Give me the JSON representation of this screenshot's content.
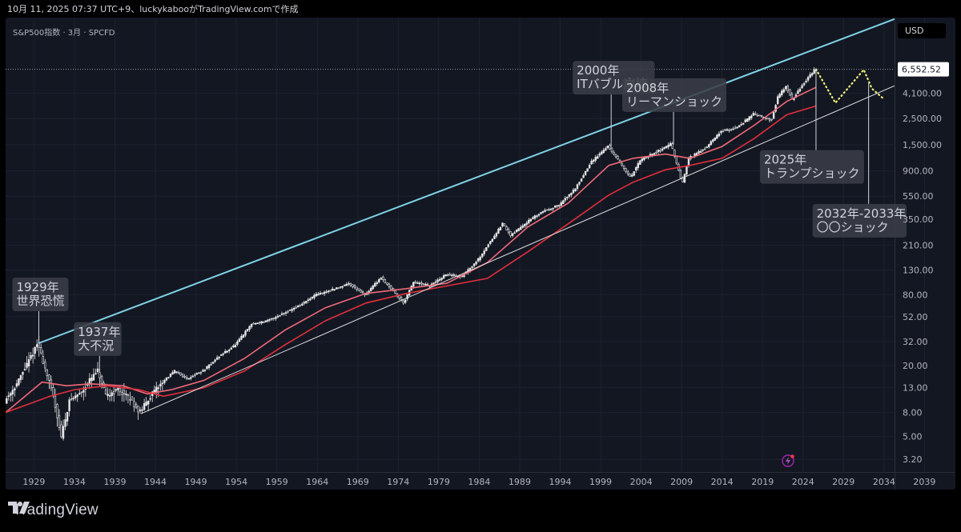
{
  "header": {
    "caption": "10月 11, 2025 07:37 UTC+9、luckykabooがTradingView.comで作成"
  },
  "chart_header": {
    "symbol": "S&P500指数 · 3月 · SPCFD",
    "currency": "USD"
  },
  "footer": {
    "logo_icon": "tradingview-logo-icon",
    "brand": "TradingView"
  },
  "colors": {
    "background": "#131722",
    "candles": "#e6e6e6",
    "upper_trendline": "#7fd3e6",
    "lower_trendline": "#e0e0e0",
    "ma_fast": "#f06a78",
    "ma_slow": "#e0303c",
    "projection": "#f2f27a"
  },
  "chart_data": {
    "type": "line",
    "title": "",
    "xlabel": "",
    "ylabel": "",
    "scale": "log",
    "xlim": [
      1925.5,
      2035.3
    ],
    "ylim": [
      2.5,
      18000
    ],
    "x_ticks": [
      "1929",
      "1934",
      "1939",
      "1944",
      "1949",
      "1954",
      "1959",
      "1964",
      "1969",
      "1974",
      "1979",
      "1984",
      "1989",
      "1994",
      "1999",
      "2004",
      "2009",
      "2014",
      "2019",
      "2024",
      "2029",
      "2034",
      "2039"
    ],
    "y_ticks": [
      "3.20",
      "5.00",
      "8.00",
      "13.00",
      "20.00",
      "32.00",
      "52.00",
      "80.00",
      "130.00",
      "210.00",
      "350.00",
      "550.00",
      "900.00",
      "1,500.00",
      "2,500.00",
      "4,100.00"
    ],
    "last_price": "6,552.52",
    "price_points": [
      [
        1925.5,
        10
      ],
      [
        1927,
        14
      ],
      [
        1928.5,
        22
      ],
      [
        1929.6,
        31
      ],
      [
        1930.5,
        19
      ],
      [
        1931.5,
        11
      ],
      [
        1932.5,
        5
      ],
      [
        1933.5,
        10
      ],
      [
        1935,
        12
      ],
      [
        1936,
        15
      ],
      [
        1937,
        18
      ],
      [
        1938,
        11
      ],
      [
        1939.5,
        12.5
      ],
      [
        1941,
        10.5
      ],
      [
        1942.2,
        8
      ],
      [
        1943.5,
        11
      ],
      [
        1945,
        14.5
      ],
      [
        1946.5,
        18
      ],
      [
        1948,
        15.5
      ],
      [
        1950,
        18
      ],
      [
        1952,
        24
      ],
      [
        1954,
        30
      ],
      [
        1956,
        45
      ],
      [
        1958,
        48
      ],
      [
        1960,
        56
      ],
      [
        1962,
        65
      ],
      [
        1964,
        80
      ],
      [
        1966,
        88
      ],
      [
        1968,
        100
      ],
      [
        1970,
        80
      ],
      [
        1972,
        112
      ],
      [
        1974.8,
        68
      ],
      [
        1976,
        102
      ],
      [
        1978,
        95
      ],
      [
        1980,
        118
      ],
      [
        1982,
        115
      ],
      [
        1984,
        160
      ],
      [
        1987,
        320
      ],
      [
        1988,
        255
      ],
      [
        1990,
        330
      ],
      [
        1992,
        410
      ],
      [
        1994,
        460
      ],
      [
        1996,
        640
      ],
      [
        1998,
        1080
      ],
      [
        2000,
        1460
      ],
      [
        2001,
        1180
      ],
      [
        2002.8,
        790
      ],
      [
        2004,
        1110
      ],
      [
        2006,
        1300
      ],
      [
        2007.8,
        1530
      ],
      [
        2009.2,
        700
      ],
      [
        2010,
        1150
      ],
      [
        2012,
        1400
      ],
      [
        2014,
        1950
      ],
      [
        2016,
        2100
      ],
      [
        2018,
        2750
      ],
      [
        2020.2,
        2400
      ],
      [
        2021,
        3800
      ],
      [
        2022,
        4750
      ],
      [
        2022.8,
        3600
      ],
      [
        2024,
        4800
      ],
      [
        2025.6,
        6552.52
      ]
    ],
    "series": [
      {
        "type": "moving_average",
        "points": [
          [
            1925.5,
            8
          ],
          [
            1930,
            14.5
          ],
          [
            1933,
            13.5
          ],
          [
            1936,
            14
          ],
          [
            1940,
            13.5
          ],
          [
            1943,
            11.5
          ],
          [
            1946,
            12.5
          ],
          [
            1950,
            15
          ],
          [
            1955,
            23
          ],
          [
            1960,
            40
          ],
          [
            1965,
            62
          ],
          [
            1970,
            82
          ],
          [
            1975,
            90
          ],
          [
            1980,
            100
          ],
          [
            1985,
            150
          ],
          [
            1990,
            300
          ],
          [
            1995,
            480
          ],
          [
            2000,
            1000
          ],
          [
            2003,
            1150
          ],
          [
            2007,
            1250
          ],
          [
            2010,
            1150
          ],
          [
            2014,
            1450
          ],
          [
            2018,
            2200
          ],
          [
            2022,
            3500
          ],
          [
            2025.6,
            4600
          ]
        ]
      },
      {
        "type": "moving_average",
        "points": [
          [
            1925.5,
            8
          ],
          [
            1931,
            11
          ],
          [
            1934,
            12.5
          ],
          [
            1938,
            13.5
          ],
          [
            1942,
            12.5
          ],
          [
            1945,
            11
          ],
          [
            1950,
            13
          ],
          [
            1955,
            18
          ],
          [
            1960,
            30
          ],
          [
            1965,
            48
          ],
          [
            1970,
            68
          ],
          [
            1975,
            82
          ],
          [
            1980,
            95
          ],
          [
            1985,
            110
          ],
          [
            1990,
            185
          ],
          [
            1995,
            320
          ],
          [
            2000,
            560
          ],
          [
            2003,
            720
          ],
          [
            2007,
            920
          ],
          [
            2010,
            1000
          ],
          [
            2014,
            1150
          ],
          [
            2018,
            1700
          ],
          [
            2022,
            2700
          ],
          [
            2025.6,
            3200
          ]
        ]
      },
      {
        "type": "trendline",
        "points": [
          [
            1929.6,
            31
          ],
          [
            2035.3,
            17500
          ]
        ]
      },
      {
        "type": "trendline",
        "points": [
          [
            1942.2,
            7.8
          ],
          [
            2035.3,
            4750
          ]
        ]
      },
      {
        "type": "projection",
        "points": [
          [
            2025.6,
            6552.52
          ],
          [
            2028,
            3400
          ],
          [
            2031.5,
            6500
          ],
          [
            2032.5,
            4500
          ],
          [
            2034,
            3650
          ]
        ]
      }
    ],
    "annotations": [
      {
        "lines": [
          "1929年",
          "世界恐慌"
        ],
        "x": 1929.6,
        "y": 31
      },
      {
        "lines": [
          "1937年",
          "大不況"
        ],
        "x": 1937.1,
        "y": 18
      },
      {
        "lines": [
          "2000年",
          "ITバブル崩壊"
        ],
        "x": 2000.3,
        "y": 1450
      },
      {
        "lines": [
          "2008年",
          "リーマンショック"
        ],
        "x": 2008.0,
        "y": 1500
      },
      {
        "lines": [
          "2025年",
          "トランプショック"
        ],
        "x": 2025.6,
        "y": 6552.52
      },
      {
        "lines": [
          "2032年-2033年",
          "〇〇ショック"
        ],
        "x": 2032.1,
        "y": 5000
      }
    ]
  }
}
